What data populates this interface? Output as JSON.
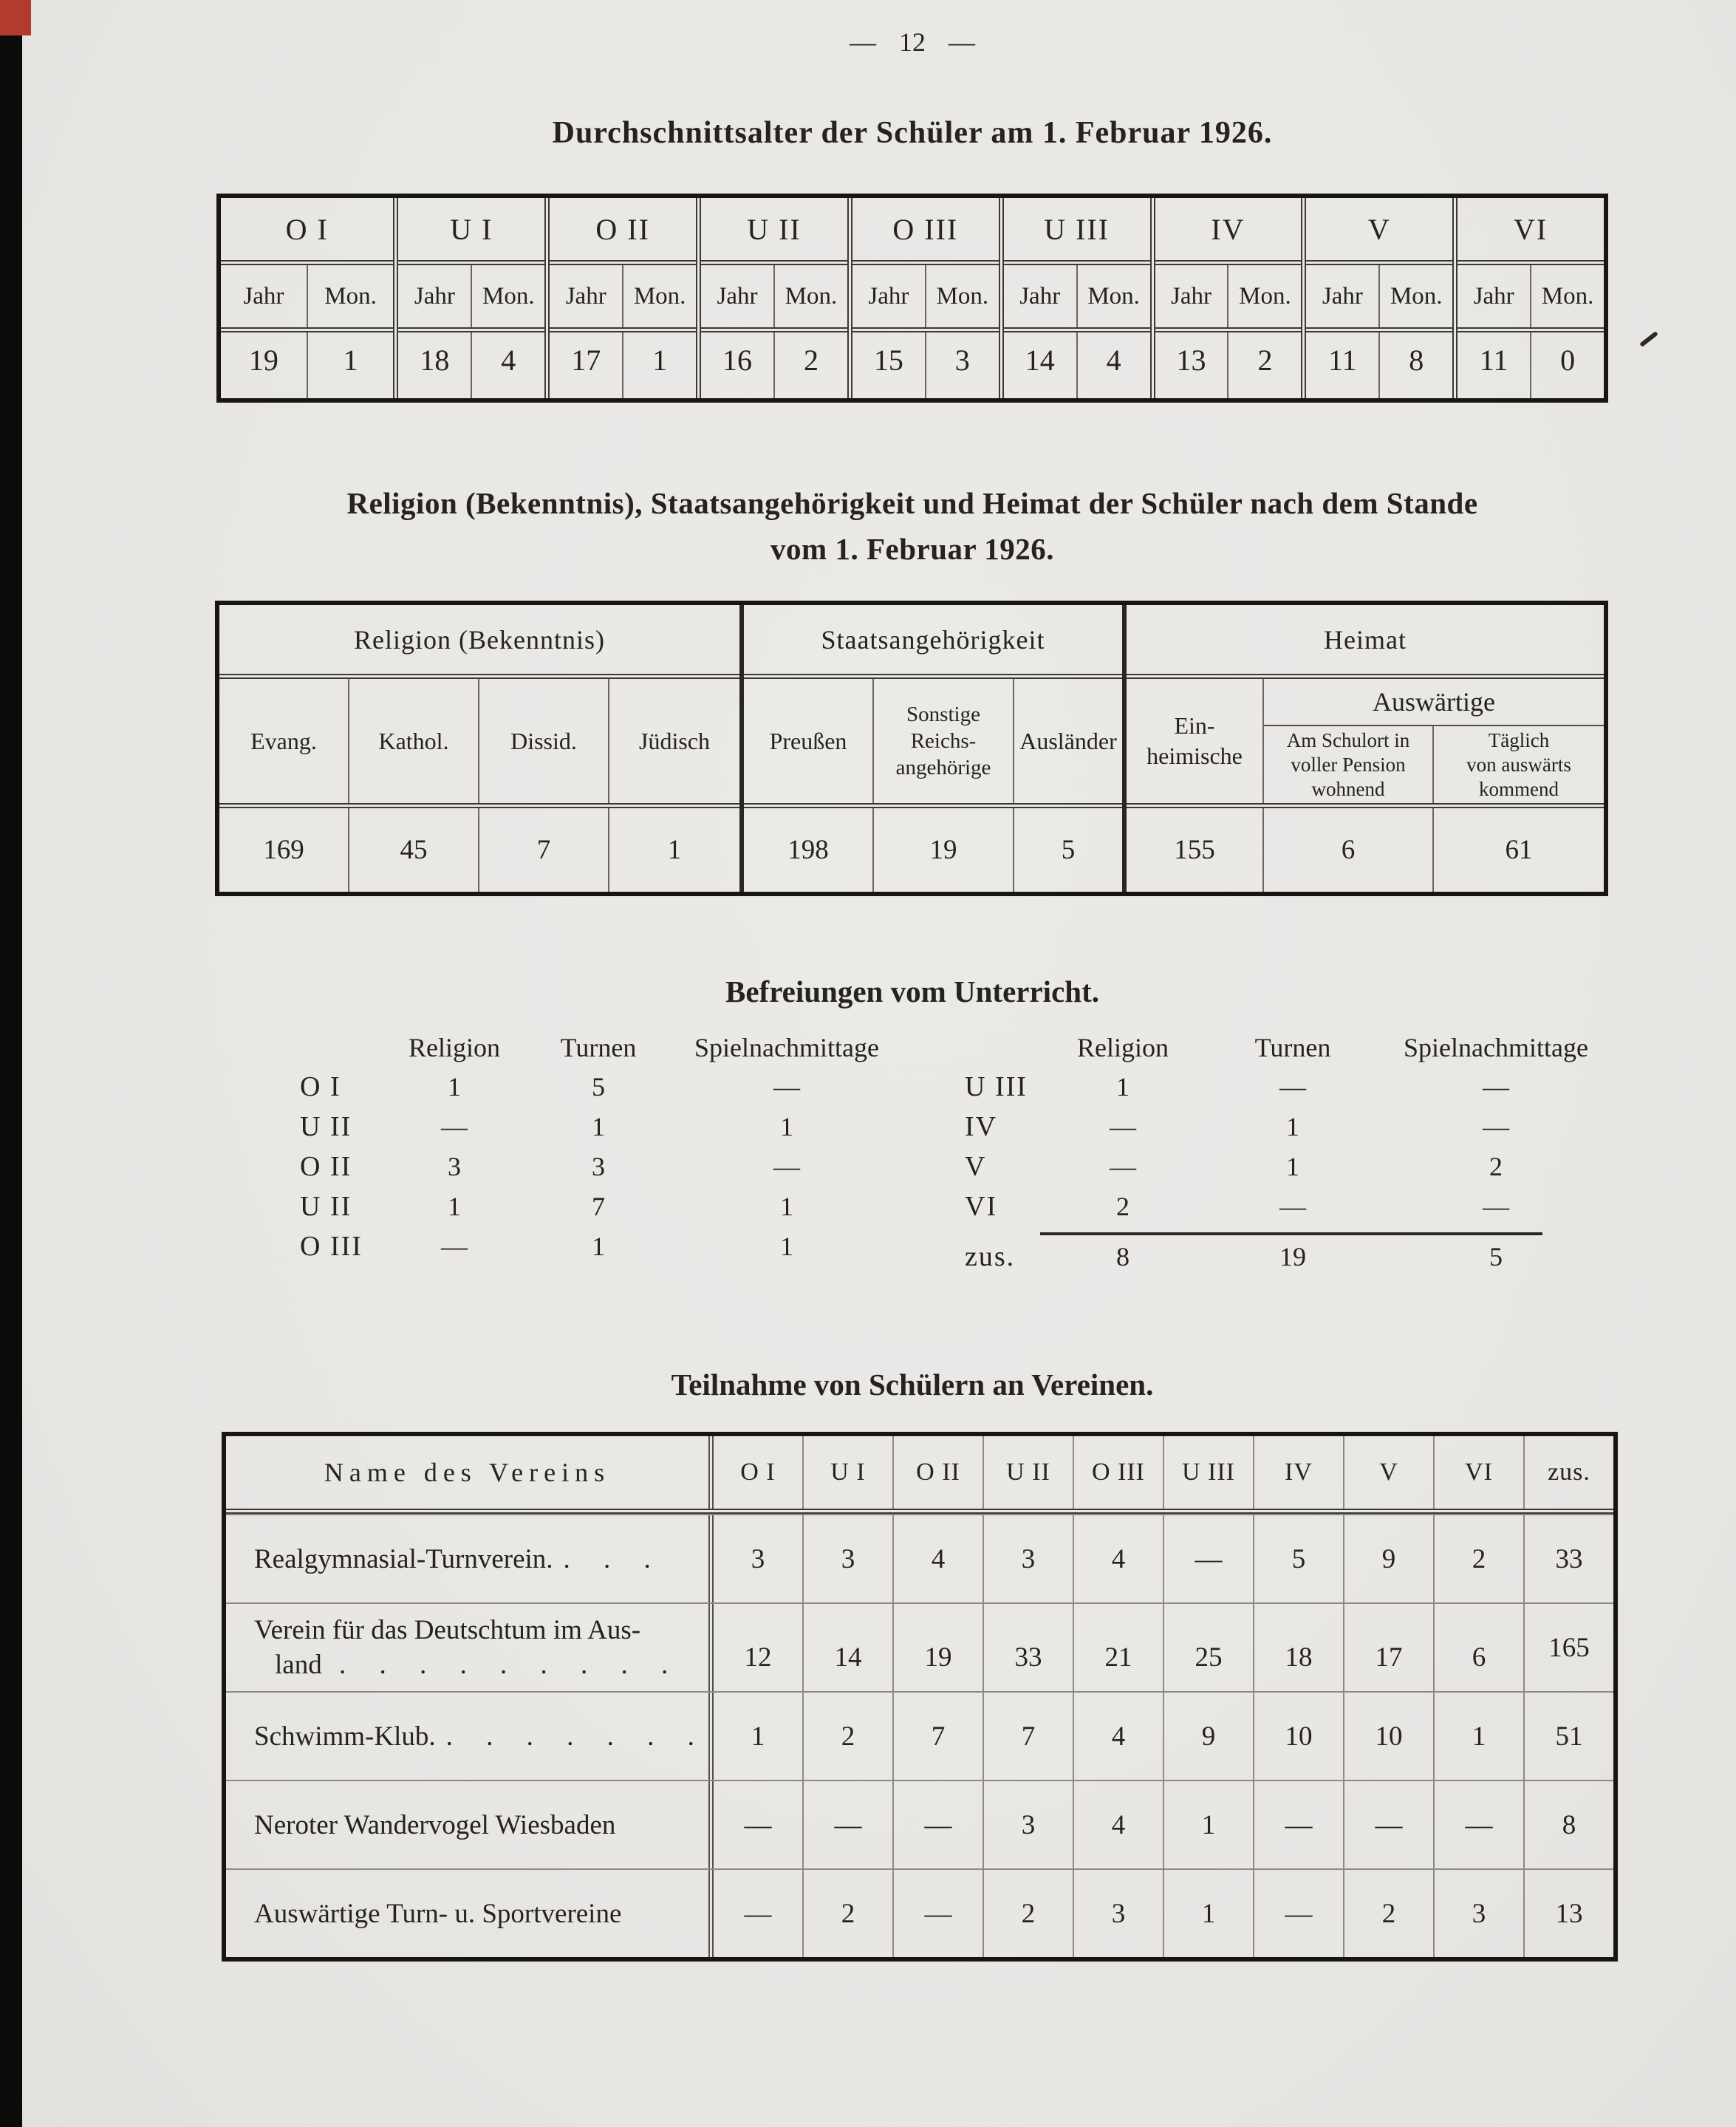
{
  "page": {
    "number": "— 12 —"
  },
  "avg_table": {
    "title": "Durchschnittsalter der Schüler am 1. Februar 1926.",
    "jahr_label": "Jahr",
    "mon_label": "Mon.",
    "columns": [
      {
        "label": "O I",
        "jahr": "19",
        "mon": "1"
      },
      {
        "label": "U I",
        "jahr": "18",
        "mon": "4"
      },
      {
        "label": "O II",
        "jahr": "17",
        "mon": "1"
      },
      {
        "label": "U II",
        "jahr": "16",
        "mon": "2"
      },
      {
        "label": "O III",
        "jahr": "15",
        "mon": "3"
      },
      {
        "label": "U III",
        "jahr": "14",
        "mon": "4"
      },
      {
        "label": "IV",
        "jahr": "13",
        "mon": "2"
      },
      {
        "label": "V",
        "jahr": "11",
        "mon": "8"
      },
      {
        "label": "VI",
        "jahr": "11",
        "mon": "0"
      }
    ]
  },
  "religion_table": {
    "title_line1": "Religion (Bekenntnis), Staatsangehörigkeit und Heimat der Schüler nach dem Stande",
    "title_line2": "vom 1. Februar 1926.",
    "group_religion": "Religion (Bekenntnis)",
    "group_staat": "Staatsangehörigkeit",
    "group_heimat": "Heimat",
    "col_evang": "Evang.",
    "col_kathol": "Kathol.",
    "col_dissid": "Dissid.",
    "col_juedisch": "Jüdisch",
    "col_preussen": "Preußen",
    "col_sonstige_l1": "Sonstige",
    "col_sonstige_l2": "Reichs-",
    "col_sonstige_l3": "angehörige",
    "col_auslaender": "Ausländer",
    "col_einheimische_l1": "Ein-",
    "col_einheimische_l2": "heimische",
    "col_auswaertige": "Auswärtige",
    "col_pension_l1": "Am Schulort in",
    "col_pension_l2": "voller  Pension",
    "col_pension_l3": "wohnend",
    "col_taeglich_l1": "Täglich",
    "col_taeglich_l2": "von auswärts",
    "col_taeglich_l3": "kommend",
    "values": {
      "evang": "169",
      "kathol": "45",
      "dissid": "7",
      "juedisch": "1",
      "preussen": "198",
      "sonstige": "19",
      "auslaender": "5",
      "einheimische": "155",
      "pension": "6",
      "taeglich": "61"
    }
  },
  "befreiungen": {
    "title": "Befreiungen vom Unterricht.",
    "col_religion": "Religion",
    "col_turnen": "Turnen",
    "col_spiel": "Spielnachmittage",
    "left_rows": [
      {
        "label": "O I",
        "religion": "1",
        "turnen": "5",
        "spiel": "—"
      },
      {
        "label": "U II",
        "religion": "—",
        "turnen": "1",
        "spiel": "1"
      },
      {
        "label": "O II",
        "religion": "3",
        "turnen": "3",
        "spiel": "—"
      },
      {
        "label": "U II",
        "religion": "1",
        "turnen": "7",
        "spiel": "1"
      },
      {
        "label": "O III",
        "religion": "—",
        "turnen": "1",
        "spiel": "1"
      }
    ],
    "right_rows": [
      {
        "label": "U III",
        "religion": "1",
        "turnen": "—",
        "spiel": "—"
      },
      {
        "label": "IV",
        "religion": "—",
        "turnen": "1",
        "spiel": "—"
      },
      {
        "label": "V",
        "religion": "—",
        "turnen": "1",
        "spiel": "2"
      },
      {
        "label": "VI",
        "religion": "2",
        "turnen": "—",
        "spiel": "—"
      },
      {
        "label": "zus.",
        "religion": "8",
        "turnen": "19",
        "spiel": "5"
      }
    ]
  },
  "vereine": {
    "title": "Teilnahme von Schülern an Vereinen.",
    "name_header": "Name des Vereins",
    "classes": [
      "O I",
      "U I",
      "O II",
      "U II",
      "O III",
      "U III",
      "IV",
      "V",
      "VI",
      "zus."
    ],
    "rows": [
      {
        "name": "Realgymnasial-Turnverein.",
        "dots": ". . .",
        "values": [
          "3",
          "3",
          "4",
          "3",
          "4",
          "—",
          "5",
          "9",
          "2",
          "33"
        ]
      },
      {
        "name_l1": "Verein für das Deutschtum im Aus-",
        "name_l2": "land",
        "dots": ". . . . . . . . .",
        "values": [
          "12",
          "14",
          "19",
          "33",
          "21",
          "25",
          "18",
          "17",
          "6",
          "165"
        ]
      },
      {
        "name": "Schwimm-Klub.",
        "dots": ". . . . . . .",
        "values": [
          "1",
          "2",
          "7",
          "7",
          "4",
          "9",
          "10",
          "10",
          "1",
          "51"
        ]
      },
      {
        "name": "Neroter Wandervogel Wiesbaden",
        "dots": "",
        "values": [
          "—",
          "—",
          "—",
          "3",
          "4",
          "1",
          "—",
          "—",
          "—",
          "8"
        ]
      },
      {
        "name": "Auswärtige Turn- u. Sportvereine",
        "dots": "",
        "values": [
          "—",
          "2",
          "—",
          "2",
          "3",
          "1",
          "—",
          "2",
          "3",
          "13"
        ]
      }
    ]
  }
}
